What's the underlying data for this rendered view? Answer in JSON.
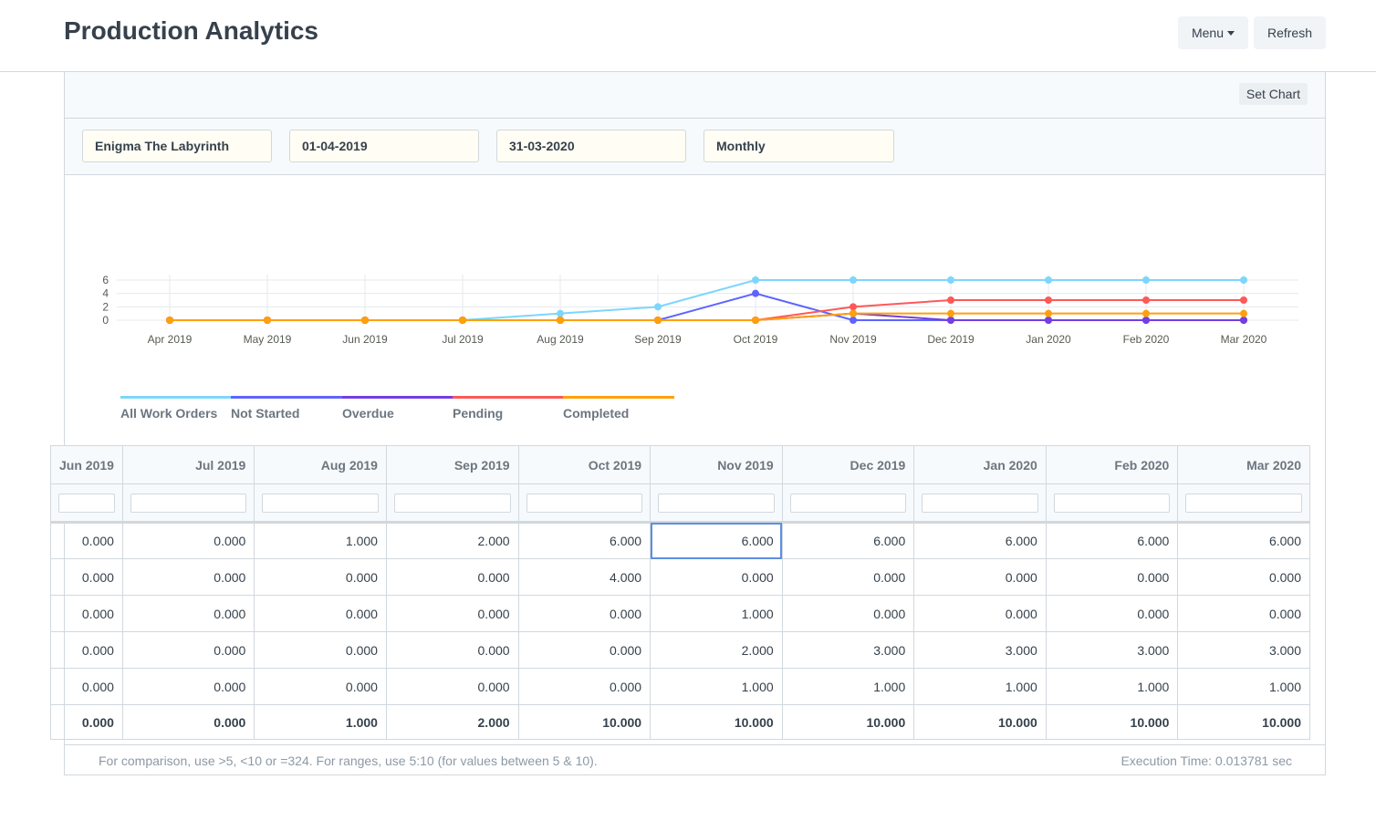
{
  "header": {
    "title": "Production Analytics",
    "menu_label": "Menu",
    "refresh_label": "Refresh"
  },
  "panel": {
    "set_chart_label": "Set Chart"
  },
  "filters": {
    "company": "Enigma The Labyrinth",
    "from_date": "01-04-2019",
    "to_date": "31-03-2020",
    "range": "Monthly"
  },
  "colors": {
    "all_work_orders": "#7cd6fd",
    "not_started": "#5e64ff",
    "overdue": "#743ee2",
    "pending": "#ff5858",
    "completed": "#ffa00a"
  },
  "chart_data": {
    "type": "line",
    "categories": [
      "Apr 2019",
      "May 2019",
      "Jun 2019",
      "Jul 2019",
      "Aug 2019",
      "Sep 2019",
      "Oct 2019",
      "Nov 2019",
      "Dec 2019",
      "Jan 2020",
      "Feb 2020",
      "Mar 2020"
    ],
    "yticks": [
      "0",
      "2",
      "4",
      "6"
    ],
    "ylim": [
      0,
      6
    ],
    "grid": true,
    "legend_position": "bottom-left",
    "series": [
      {
        "name": "All Work Orders",
        "color": "#7cd6fd",
        "values": [
          0,
          0,
          0,
          0,
          1,
          2,
          6,
          6,
          6,
          6,
          6,
          6
        ]
      },
      {
        "name": "Not Started",
        "color": "#5e64ff",
        "values": [
          0,
          0,
          0,
          0,
          0,
          0,
          4,
          0,
          0,
          0,
          0,
          0
        ]
      },
      {
        "name": "Overdue",
        "color": "#743ee2",
        "values": [
          0,
          0,
          0,
          0,
          0,
          0,
          0,
          1,
          0,
          0,
          0,
          0
        ]
      },
      {
        "name": "Pending",
        "color": "#ff5858",
        "values": [
          0,
          0,
          0,
          0,
          0,
          0,
          0,
          2,
          3,
          3,
          3,
          3
        ]
      },
      {
        "name": "Completed",
        "color": "#ffa00a",
        "values": [
          0,
          0,
          0,
          0,
          0,
          0,
          0,
          1,
          1,
          1,
          1,
          1
        ]
      }
    ]
  },
  "legend": [
    "All Work Orders",
    "Not Started",
    "Overdue",
    "Pending",
    "Completed"
  ],
  "table": {
    "columns": [
      "Jun 2019",
      "Jul 2019",
      "Aug 2019",
      "Sep 2019",
      "Oct 2019",
      "Nov 2019",
      "Dec 2019",
      "Jan 2020",
      "Feb 2020",
      "Mar 2020"
    ],
    "rows": [
      [
        "0.000",
        "0.000",
        "1.000",
        "2.000",
        "6.000",
        "6.000",
        "6.000",
        "6.000",
        "6.000",
        "6.000"
      ],
      [
        "0.000",
        "0.000",
        "0.000",
        "0.000",
        "4.000",
        "0.000",
        "0.000",
        "0.000",
        "0.000",
        "0.000"
      ],
      [
        "0.000",
        "0.000",
        "0.000",
        "0.000",
        "0.000",
        "1.000",
        "0.000",
        "0.000",
        "0.000",
        "0.000"
      ],
      [
        "0.000",
        "0.000",
        "0.000",
        "0.000",
        "0.000",
        "2.000",
        "3.000",
        "3.000",
        "3.000",
        "3.000"
      ],
      [
        "0.000",
        "0.000",
        "0.000",
        "0.000",
        "0.000",
        "1.000",
        "1.000",
        "1.000",
        "1.000",
        "1.000"
      ]
    ],
    "totals": [
      "0.000",
      "0.000",
      "1.000",
      "2.000",
      "10.000",
      "10.000",
      "10.000",
      "10.000",
      "10.000",
      "10.000"
    ]
  },
  "footer": {
    "hint": "For comparison, use >5, <10 or =324. For ranges, use 5:10 (for values between 5 & 10).",
    "execution_time": "Execution Time: 0.013781 sec"
  }
}
